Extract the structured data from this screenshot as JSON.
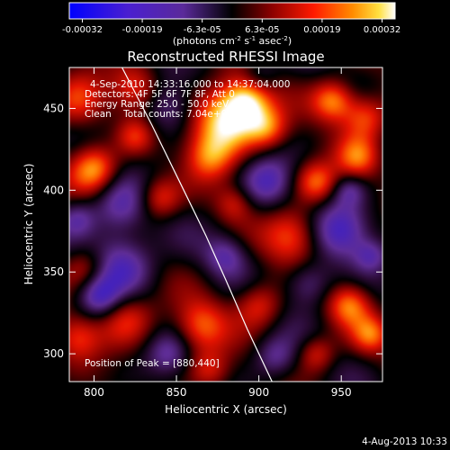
{
  "chart_data": {
    "type": "heatmap",
    "title": "Reconstructed RHESSI Image",
    "colorbar": {
      "ticks": [
        "-0.00032",
        "-0.00019",
        "-6.3e-05",
        "6.3e-05",
        "0.00019",
        "0.00032"
      ],
      "unit_label": {
        "parts": [
          {
            "t": "(photons cm",
            "sup": false
          },
          {
            "t": "-2",
            "sup": true
          },
          {
            "t": " s",
            "sup": false
          },
          {
            "t": "-1",
            "sup": true
          },
          {
            "t": " asec",
            "sup": false
          },
          {
            "t": "-2",
            "sup": true
          },
          {
            "t": ")",
            "sup": false
          }
        ]
      },
      "range": [
        -0.00032,
        0.00032
      ],
      "colormap": "blue-purple-black-red-orange-yellow-white"
    },
    "xlabel": "Heliocentric X (arcsec)",
    "ylabel": "Heliocentric Y (arcsec)",
    "xlim": [
      785,
      975
    ],
    "ylim": [
      283,
      475
    ],
    "xticks": [
      "800",
      "850",
      "900",
      "950"
    ],
    "yticks": [
      "300",
      "350",
      "400",
      "450"
    ],
    "annotations": [
      "4-Sep-2010 14:33:16.000 to 14:37:04.000",
      "Detectors: 4F 5F 6F 7F 8F, Att 0",
      "Energy Range: 25.0 - 50.0 keV",
      "Clean    Total counts: 7.04e+03"
    ],
    "peak_label": "Position of Peak = [880,440]",
    "peak": [
      880,
      440
    ],
    "limb_curve": [
      [
        817,
        475
      ],
      [
        835,
        440
      ],
      [
        852,
        405
      ],
      [
        868,
        372
      ],
      [
        880,
        345
      ],
      [
        893,
        315
      ],
      [
        908,
        283
      ]
    ],
    "blobs": [
      {
        "x": 880,
        "y": 442,
        "r": 14,
        "v": 1.0
      },
      {
        "x": 893,
        "y": 455,
        "r": 10,
        "v": 0.75
      },
      {
        "x": 905,
        "y": 438,
        "r": 9,
        "v": 0.55
      },
      {
        "x": 800,
        "y": 413,
        "r": 10,
        "v": 0.75
      },
      {
        "x": 790,
        "y": 455,
        "r": 12,
        "v": 0.5
      },
      {
        "x": 825,
        "y": 462,
        "r": 10,
        "v": 0.45
      },
      {
        "x": 945,
        "y": 455,
        "r": 9,
        "v": 0.7
      },
      {
        "x": 965,
        "y": 445,
        "r": 10,
        "v": 0.6
      },
      {
        "x": 960,
        "y": 420,
        "r": 9,
        "v": 0.55
      },
      {
        "x": 935,
        "y": 405,
        "r": 9,
        "v": 0.6
      },
      {
        "x": 920,
        "y": 372,
        "r": 12,
        "v": 0.55
      },
      {
        "x": 955,
        "y": 330,
        "r": 9,
        "v": 0.6
      },
      {
        "x": 968,
        "y": 312,
        "r": 8,
        "v": 0.5
      },
      {
        "x": 900,
        "y": 330,
        "r": 10,
        "v": 0.5
      },
      {
        "x": 865,
        "y": 317,
        "r": 11,
        "v": 0.55
      },
      {
        "x": 820,
        "y": 322,
        "r": 12,
        "v": 0.5
      },
      {
        "x": 790,
        "y": 310,
        "r": 10,
        "v": 0.45
      },
      {
        "x": 840,
        "y": 395,
        "r": 9,
        "v": 0.5
      },
      {
        "x": 795,
        "y": 352,
        "r": 10,
        "v": 0.45
      },
      {
        "x": 870,
        "y": 420,
        "r": 10,
        "v": 0.5
      },
      {
        "x": 885,
        "y": 392,
        "r": 8,
        "v": 0.35
      },
      {
        "x": 935,
        "y": 300,
        "r": 8,
        "v": 0.45
      },
      {
        "x": 870,
        "y": 290,
        "r": 9,
        "v": 0.4
      },
      {
        "x": 825,
        "y": 433,
        "r": 8,
        "v": 0.4
      },
      {
        "x": 950,
        "y": 375,
        "r": 12,
        "v": -0.6
      },
      {
        "x": 905,
        "y": 405,
        "r": 11,
        "v": -0.5
      },
      {
        "x": 817,
        "y": 355,
        "r": 14,
        "v": -0.6
      },
      {
        "x": 803,
        "y": 335,
        "r": 9,
        "v": -0.55
      },
      {
        "x": 815,
        "y": 390,
        "r": 12,
        "v": -0.45
      },
      {
        "x": 930,
        "y": 343,
        "r": 10,
        "v": -0.45
      },
      {
        "x": 880,
        "y": 360,
        "r": 9,
        "v": -0.4
      },
      {
        "x": 845,
        "y": 450,
        "r": 11,
        "v": -0.4
      },
      {
        "x": 910,
        "y": 298,
        "r": 9,
        "v": -0.4
      },
      {
        "x": 955,
        "y": 400,
        "r": 7,
        "v": -0.35
      },
      {
        "x": 790,
        "y": 383,
        "r": 8,
        "v": -0.4
      },
      {
        "x": 845,
        "y": 300,
        "r": 9,
        "v": -0.35
      },
      {
        "x": 968,
        "y": 360,
        "r": 7,
        "v": -0.35
      },
      {
        "x": 900,
        "y": 470,
        "r": 8,
        "v": -0.3
      }
    ],
    "timestamp": "4-Aug-2013 10:33"
  }
}
